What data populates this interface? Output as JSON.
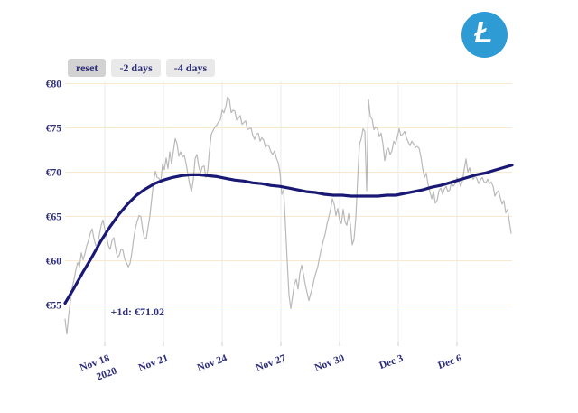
{
  "toolbar": {
    "buttons": [
      {
        "label": "reset"
      },
      {
        "label": "-2 days"
      },
      {
        "label": "-4 days"
      }
    ],
    "active_index": 0
  },
  "logo": {
    "name": "litecoin-logo",
    "glyph": "Ł",
    "color": "#2f9bd5"
  },
  "colors": {
    "trend_navy": "#191975",
    "price_gray": "#b9b9b9",
    "grid_horizontal": "#fce7d1",
    "grid_vertical": "#ebebf0",
    "tick_mark": "#cccccc",
    "label_text": "#2d2d7a",
    "button_bg": "#e9e9e9",
    "button_active_bg": "#d2d2d2",
    "logo_blue": "#2f9bd5"
  },
  "chart_data": {
    "type": "line",
    "title": "",
    "xlabel": "",
    "ylabel": "",
    "grid": true,
    "legend": "none",
    "x_axis": {
      "unit": "days since Nov 18 2020 00:00",
      "range_t": [
        -2.0308,
        20.8154
      ],
      "ticks": [
        {
          "t": 0,
          "label": "Nov 18"
        },
        {
          "t": 3,
          "label": "Nov 21"
        },
        {
          "t": 6,
          "label": "Nov 24"
        },
        {
          "t": 9,
          "label": "Nov 27"
        },
        {
          "t": 12,
          "label": "Nov 30"
        },
        {
          "t": 15,
          "label": "Dec 3"
        },
        {
          "t": 18,
          "label": "Dec 6"
        }
      ],
      "year_label": "2020"
    },
    "y_axis": {
      "unit": "EUR",
      "range": [
        51.3,
        81.0
      ],
      "ticks": [
        {
          "value": 55,
          "label": "€55"
        },
        {
          "value": 60,
          "label": "€60"
        },
        {
          "value": 65,
          "label": "€65"
        },
        {
          "value": 70,
          "label": "€70"
        },
        {
          "value": 75,
          "label": "€75"
        },
        {
          "value": 80,
          "label": "€80"
        }
      ]
    },
    "annotation": {
      "text": "+1d: €71.02",
      "t": 0.3,
      "price": 54.25
    },
    "series": [
      {
        "name": "ltc-eur-price",
        "color": "#b9b9b9",
        "width": 1.2,
        "t_start": -2.0308,
        "t_step": 0.0923,
        "values": [
          53.4,
          51.7,
          53.8,
          55.5,
          57.0,
          57.9,
          59.0,
          59.8,
          59.3,
          60.9,
          60.1,
          60.8,
          61.7,
          62.3,
          63.1,
          63.6,
          62.5,
          61.7,
          61.9,
          62.9,
          64.0,
          64.6,
          63.6,
          62.7,
          61.7,
          61.3,
          62.3,
          62.6,
          61.4,
          60.4,
          60.6,
          61.3,
          61.2,
          60.2,
          59.8,
          59.3,
          59.7,
          60.9,
          62.5,
          63.7,
          64.5,
          65.1,
          65.0,
          63.5,
          62.5,
          62.5,
          63.8,
          65.1,
          67.0,
          68.9,
          70.1,
          69.4,
          69.3,
          69.0,
          70.9,
          70.3,
          71.6,
          70.4,
          72.3,
          70.9,
          72.4,
          73.8,
          73.2,
          71.8,
          72.3,
          71.7,
          71.9,
          71.0,
          69.8,
          68.6,
          67.8,
          69.1,
          71.5,
          72.0,
          70.7,
          69.9,
          70.6,
          70.7,
          69.4,
          70.2,
          72.5,
          74.3,
          74.7,
          75.1,
          75.3,
          75.7,
          75.9,
          77.0,
          76.7,
          77.4,
          78.5,
          78.2,
          76.7,
          77.0,
          76.9,
          75.9,
          76.1,
          76.4,
          75.4,
          75.6,
          75.8,
          74.8,
          74.9,
          75.0,
          74.1,
          73.7,
          74.3,
          74.4,
          73.5,
          73.9,
          73.6,
          72.8,
          73.1,
          72.9,
          72.3,
          72.0,
          72.4,
          71.6,
          71.1,
          70.0,
          67.5,
          68.0,
          64.2,
          60.0,
          56.1,
          54.6,
          56.0,
          57.4,
          57.9,
          56.8,
          58.6,
          59.5,
          58.5,
          57.3,
          56.4,
          55.5,
          56.3,
          57.0,
          58.0,
          58.7,
          59.4,
          60.5,
          61.4,
          62.3,
          63.0,
          64.1,
          64.9,
          65.8,
          67.0,
          66.4,
          65.1,
          65.9,
          64.6,
          64.2,
          65.8,
          64.4,
          64.0,
          65.3,
          64.1,
          61.8,
          62.4,
          64.9,
          69.2,
          73.1,
          73.8,
          74.9,
          74.6,
          67.9,
          78.2,
          76.3,
          76.0,
          74.8,
          75.1,
          74.9,
          74.0,
          74.4,
          73.2,
          71.3,
          72.5,
          72.7,
          72.0,
          72.4,
          73.5,
          73.2,
          74.0,
          74.9,
          74.1,
          74.3,
          74.6,
          73.9,
          73.4,
          73.0,
          73.5,
          73.2,
          72.8,
          72.9,
          72.7,
          71.8,
          70.4,
          69.4,
          69.9,
          68.6,
          67.8,
          67.0,
          67.8,
          66.5,
          66.8,
          67.9,
          68.2,
          67.5,
          68.1,
          68.4,
          67.8,
          68.0,
          68.9,
          68.4,
          68.7,
          69.4,
          69.0,
          68.4,
          69.0,
          70.3,
          71.5,
          70.0,
          70.5,
          69.6,
          69.2,
          69.6,
          69.3,
          68.7,
          69.1,
          69.4,
          68.9,
          68.8,
          69.2,
          68.7,
          68.9,
          68.4,
          67.3,
          67.7,
          67.9,
          67.1,
          66.4,
          66.8,
          65.4,
          65.8,
          64.4,
          63.1
        ]
      },
      {
        "name": "trend-forecast",
        "color": "#191975",
        "width": 3.2,
        "t_start": -2.0308,
        "t_step": 0.45692,
        "values": [
          55.2,
          56.9,
          58.7,
          60.4,
          62.2,
          63.8,
          65.2,
          66.4,
          67.4,
          68.1,
          68.7,
          69.1,
          69.4,
          69.6,
          69.7,
          69.7,
          69.6,
          69.5,
          69.3,
          69.1,
          69.0,
          68.8,
          68.7,
          68.5,
          68.4,
          68.2,
          68.0,
          67.8,
          67.7,
          67.5,
          67.4,
          67.4,
          67.3,
          67.3,
          67.3,
          67.3,
          67.4,
          67.4,
          67.6,
          67.8,
          68.0,
          68.3,
          68.5,
          68.8,
          69.1,
          69.4,
          69.7,
          69.9,
          70.2,
          70.5,
          70.8
        ]
      }
    ]
  }
}
